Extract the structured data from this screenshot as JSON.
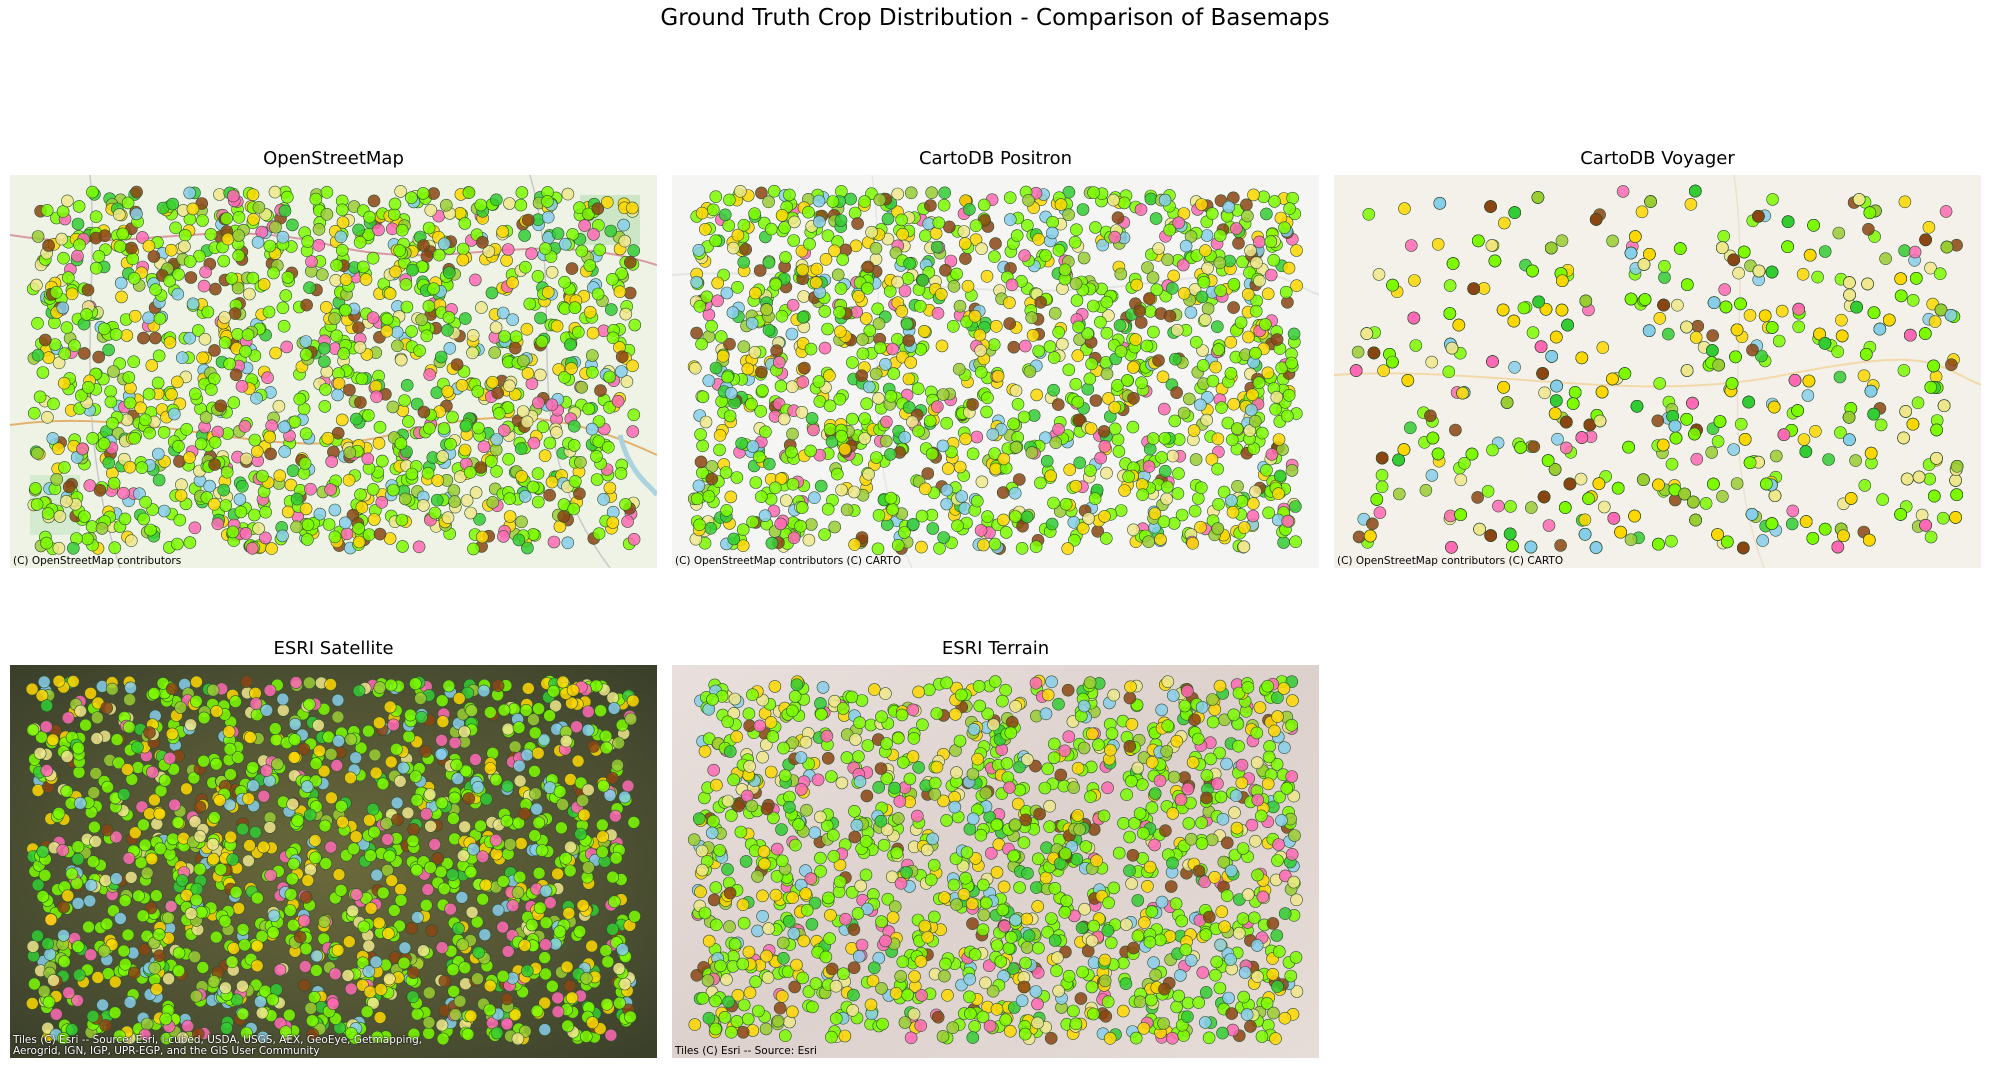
{
  "figure": {
    "title": "Ground Truth Crop Distribution - Comparison of Basemaps"
  },
  "point_colors": [
    "#7cfc00",
    "#7cfc00",
    "#7cfc00",
    "#7cfc00",
    "#7cfc00",
    "#9acd32",
    "#32cd32",
    "#ffd700",
    "#ffd700",
    "#8b4513",
    "#ff69b4",
    "#87ceeb",
    "#f0e68c"
  ],
  "point_outline": "#2f4f2f",
  "panels": [
    {
      "id": "osm",
      "title": "OpenStreetMap",
      "basemap": "openstreetmap",
      "background": "#eef3e6",
      "attribution": "(C) OpenStreetMap contributors",
      "attribution_style": "dark"
    },
    {
      "id": "positron",
      "title": "CartoDB Positron",
      "basemap": "cartodb-positron",
      "background": "#f5f5f3",
      "attribution": "(C) OpenStreetMap contributors (C) CARTO",
      "attribution_style": "dark"
    },
    {
      "id": "voyager",
      "title": "CartoDB Voyager",
      "basemap": "cartodb-voyager",
      "background": "#f4f1ea",
      "attribution": "(C) OpenStreetMap contributors (C) CARTO",
      "attribution_style": "dark"
    },
    {
      "id": "satellite",
      "title": "ESRI Satellite",
      "basemap": "esri-world-imagery",
      "background": "#4a4a2c",
      "attribution": "Tiles (C) Esri -- Source: Esri, i-cubed, USDA, USGS, AEX, GeoEye, Getmapping,\nAerogrid, IGN, IGP, UPR-EGP, and the GIS User Community",
      "attribution_style": "light"
    },
    {
      "id": "terrain",
      "title": "ESRI Terrain",
      "basemap": "esri-world-terrain",
      "background": "#e3d9d6",
      "attribution": "Tiles (C) Esri -- Source: Esri",
      "attribution_style": "dark"
    }
  ]
}
